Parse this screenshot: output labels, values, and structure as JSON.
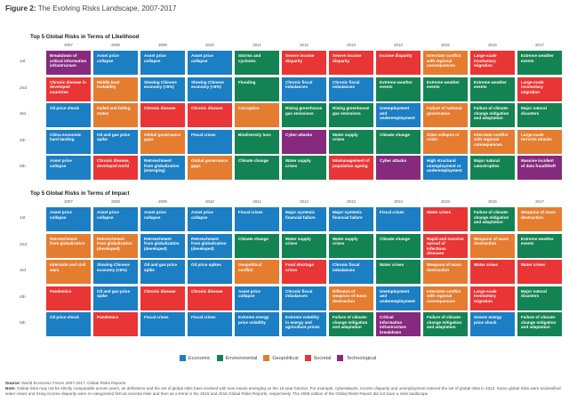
{
  "figure_label": "Figure 2:",
  "figure_title": "The Evolving Risks Landscape, 2007-2017",
  "colors": {
    "Economic": "#1c7ec3",
    "Environmental": "#148353",
    "Geopolitical": "#e57d31",
    "Societal": "#e93535",
    "Technological": "#862a7d"
  },
  "ranks": [
    "1st",
    "2nd",
    "3rd",
    "4th",
    "5th"
  ],
  "years": [
    "2007",
    "2008",
    "2009",
    "2010",
    "2011",
    "2012",
    "2013",
    "2014",
    "2015",
    "2016",
    "2017"
  ],
  "chart_data": [
    {
      "type": "table",
      "title": "Top 5 Global Risks in Terms of Likelihood",
      "columns": [
        "2007",
        "2008",
        "2009",
        "2010",
        "2011",
        "2012",
        "2013",
        "2014",
        "2015",
        "2016",
        "2017"
      ],
      "rows": [
        [
          {
            "text": "Breakdown of critical information infrastructure",
            "cat": "Technological"
          },
          {
            "text": "Asset price collapse",
            "cat": "Economic"
          },
          {
            "text": "Asset price collapse",
            "cat": "Economic"
          },
          {
            "text": "Asset price collapse",
            "cat": "Economic"
          },
          {
            "text": "Storms and cyclones",
            "cat": "Environmental"
          },
          {
            "text": "Severe income disparity",
            "cat": "Societal"
          },
          {
            "text": "Severe income disparity",
            "cat": "Societal"
          },
          {
            "text": "Income disparity",
            "cat": "Societal"
          },
          {
            "text": "Interstate conflict with regional consequences",
            "cat": "Geopolitical"
          },
          {
            "text": "Large-scale involuntary migration",
            "cat": "Societal"
          },
          {
            "text": "Extreme weather events",
            "cat": "Environmental"
          }
        ],
        [
          {
            "text": "Chronic disease in developed countries",
            "cat": "Societal"
          },
          {
            "text": "Middle East instability",
            "cat": "Geopolitical"
          },
          {
            "text": "Slowing Chinese economy (<6%)",
            "cat": "Economic"
          },
          {
            "text": "Slowing Chinese economy (<6%)",
            "cat": "Economic"
          },
          {
            "text": "Flooding",
            "cat": "Environmental"
          },
          {
            "text": "Chronic fiscal imbalances",
            "cat": "Economic"
          },
          {
            "text": "Chronic fiscal imbalances",
            "cat": "Economic"
          },
          {
            "text": "Extreme weather events",
            "cat": "Environmental"
          },
          {
            "text": "Extreme weather events",
            "cat": "Environmental"
          },
          {
            "text": "Extreme weather events",
            "cat": "Environmental"
          },
          {
            "text": "Large-scale involuntary migration",
            "cat": "Societal"
          }
        ],
        [
          {
            "text": "Oil price shock",
            "cat": "Economic"
          },
          {
            "text": "Failed and failing states",
            "cat": "Geopolitical"
          },
          {
            "text": "Chronic disease",
            "cat": "Societal"
          },
          {
            "text": "Chronic disease",
            "cat": "Societal"
          },
          {
            "text": "Corruption",
            "cat": "Geopolitical"
          },
          {
            "text": "Rising greenhouse gas emissions",
            "cat": "Environmental"
          },
          {
            "text": "Rising greenhouse gas emissions",
            "cat": "Environmental"
          },
          {
            "text": "Unemployment and underemployment",
            "cat": "Economic"
          },
          {
            "text": "Failure of national governance",
            "cat": "Geopolitical"
          },
          {
            "text": "Failure of climate-change mitigation and adaptation",
            "cat": "Environmental"
          },
          {
            "text": "Major natural disasters",
            "cat": "Environmental"
          }
        ],
        [
          {
            "text": "China economic hard landing",
            "cat": "Economic"
          },
          {
            "text": "Oil and gas price spike",
            "cat": "Economic"
          },
          {
            "text": "Global governance gaps",
            "cat": "Geopolitical"
          },
          {
            "text": "Fiscal crises",
            "cat": "Economic"
          },
          {
            "text": "Biodiversity loss",
            "cat": "Environmental"
          },
          {
            "text": "Cyber attacks",
            "cat": "Technological"
          },
          {
            "text": "Water supply crises",
            "cat": "Environmental"
          },
          {
            "text": "Climate change",
            "cat": "Environmental"
          },
          {
            "text": "State collapse or crisis",
            "cat": "Geopolitical"
          },
          {
            "text": "Interstate conflict with regional consequences",
            "cat": "Geopolitical"
          },
          {
            "text": "Large-scale terrorist attacks",
            "cat": "Geopolitical"
          }
        ],
        [
          {
            "text": "Asset price collapse",
            "cat": "Economic"
          },
          {
            "text": "Chronic disease, developed world",
            "cat": "Societal"
          },
          {
            "text": "Retrenchment from globalization (emerging)",
            "cat": "Economic"
          },
          {
            "text": "Global governance gaps",
            "cat": "Geopolitical"
          },
          {
            "text": "Climate change",
            "cat": "Environmental"
          },
          {
            "text": "Water supply crises",
            "cat": "Environmental"
          },
          {
            "text": "Mismanagement of population ageing",
            "cat": "Societal"
          },
          {
            "text": "Cyber attacks",
            "cat": "Technological"
          },
          {
            "text": "High structural unemployment or underemployment",
            "cat": "Economic"
          },
          {
            "text": "Major natural catastrophes",
            "cat": "Environmental"
          },
          {
            "text": "Massive incident of data fraud/theft",
            "cat": "Technological"
          }
        ]
      ]
    },
    {
      "type": "table",
      "title": "Top 5 Global Risks in Terms of Impact",
      "columns": [
        "2007",
        "2008",
        "2009",
        "2010",
        "2011",
        "2012",
        "2013",
        "2014",
        "2015",
        "2016",
        "2017"
      ],
      "rows": [
        [
          {
            "text": "Asset price collapse",
            "cat": "Economic"
          },
          {
            "text": "Asset price collapse",
            "cat": "Economic"
          },
          {
            "text": "Asset price collapse",
            "cat": "Economic"
          },
          {
            "text": "Asset price collapse",
            "cat": "Economic"
          },
          {
            "text": "Fiscal crises",
            "cat": "Economic"
          },
          {
            "text": "Major systemic financial failure",
            "cat": "Economic"
          },
          {
            "text": "Major systemic financial failure",
            "cat": "Economic"
          },
          {
            "text": "Fiscal crises",
            "cat": "Economic"
          },
          {
            "text": "Water crises",
            "cat": "Societal"
          },
          {
            "text": "Failure of climate-change mitigation and adaptation",
            "cat": "Environmental"
          },
          {
            "text": "Weapons of mass destruction",
            "cat": "Geopolitical"
          }
        ],
        [
          {
            "text": "Retrenchment from globalization",
            "cat": "Geopolitical"
          },
          {
            "text": "Retrenchment from globalization (developed)",
            "cat": "Geopolitical"
          },
          {
            "text": "Retrenchment from globalization (developed)",
            "cat": "Economic"
          },
          {
            "text": "Retrenchment from globalization (developed)",
            "cat": "Economic"
          },
          {
            "text": "Climate change",
            "cat": "Environmental"
          },
          {
            "text": "Water supply crises",
            "cat": "Environmental"
          },
          {
            "text": "Water supply crises",
            "cat": "Environmental"
          },
          {
            "text": "Climate change",
            "cat": "Environmental"
          },
          {
            "text": "Rapid and massive spread of infectious diseases",
            "cat": "Societal"
          },
          {
            "text": "Weapons of mass destruction",
            "cat": "Geopolitical"
          },
          {
            "text": "Extreme weather events",
            "cat": "Environmental"
          }
        ],
        [
          {
            "text": "Interstate and civil wars",
            "cat": "Geopolitical"
          },
          {
            "text": "Slowing Chinese economy (<6%)",
            "cat": "Economic"
          },
          {
            "text": "Oil and gas price spike",
            "cat": "Economic"
          },
          {
            "text": "Oil price spikes",
            "cat": "Economic"
          },
          {
            "text": "Geopolitical conflict",
            "cat": "Geopolitical"
          },
          {
            "text": "Food shortage crises",
            "cat": "Societal"
          },
          {
            "text": "Chronic fiscal imbalances",
            "cat": "Economic"
          },
          {
            "text": "Water crises",
            "cat": "Environmental"
          },
          {
            "text": "Weapons of mass destruction",
            "cat": "Geopolitical"
          },
          {
            "text": "Water crises",
            "cat": "Societal"
          },
          {
            "text": "Water crises",
            "cat": "Societal"
          }
        ],
        [
          {
            "text": "Pandemics",
            "cat": "Societal"
          },
          {
            "text": "Oil and gas price spike",
            "cat": "Economic"
          },
          {
            "text": "Chronic disease",
            "cat": "Societal"
          },
          {
            "text": "Chronic disease",
            "cat": "Societal"
          },
          {
            "text": "Asset price collapse",
            "cat": "Economic"
          },
          {
            "text": "Chronic fiscal imbalances",
            "cat": "Economic"
          },
          {
            "text": "Diffusion of weapons of mass destruction",
            "cat": "Geopolitical"
          },
          {
            "text": "Unemployment and underemployment",
            "cat": "Economic"
          },
          {
            "text": "Interstate conflict with regional consequences",
            "cat": "Geopolitical"
          },
          {
            "text": "Large-scale involuntary migration",
            "cat": "Societal"
          },
          {
            "text": "Major natural disasters",
            "cat": "Environmental"
          }
        ],
        [
          {
            "text": "Oil price shock",
            "cat": "Economic"
          },
          {
            "text": "Pandemics",
            "cat": "Societal"
          },
          {
            "text": "Fiscal crises",
            "cat": "Economic"
          },
          {
            "text": "Fiscal crises",
            "cat": "Economic"
          },
          {
            "text": "Extreme energy price volatility",
            "cat": "Economic"
          },
          {
            "text": "Extreme volatility in energy and agriculture prices",
            "cat": "Economic"
          },
          {
            "text": "Failure of climate-change mitigation and adaptation",
            "cat": "Environmental"
          },
          {
            "text": "Critical information infrastructure breakdown",
            "cat": "Technological"
          },
          {
            "text": "Failure of climate-change mitigation and adaptation",
            "cat": "Environmental"
          },
          {
            "text": "Severe energy price shock",
            "cat": "Economic"
          },
          {
            "text": "Failure of climate-change mitigation and adaptation",
            "cat": "Environmental"
          }
        ]
      ]
    }
  ],
  "legend": [
    {
      "label": "Economic",
      "cat": "Economic"
    },
    {
      "label": "Environmental",
      "cat": "Environmental"
    },
    {
      "label": "Geopolitical",
      "cat": "Geopolitical"
    },
    {
      "label": "Societal",
      "cat": "Societal"
    },
    {
      "label": "Technological",
      "cat": "Technological"
    }
  ],
  "footer": {
    "source_label": "Source:",
    "source_text": "World Economic Forum 2007-2017, Global Risks Reports",
    "note_label": "Note:",
    "note_text": "Global risks may not be strictly comparable across years, as definitions and the set of global risks have evolved with new issues emerging on the 10-year horizon. For example, cyberattacks, income disparity and unemployment entered the set of global risks in 2012. Some global risks were reclassified: water crises and rising income disparity were re-categorized first as societal risks and then as a trend in the 2015 and 2016 Global Risks Reports, respectively. The 2006 edition of the Global Risks Report did not have a risks landscape"
  }
}
